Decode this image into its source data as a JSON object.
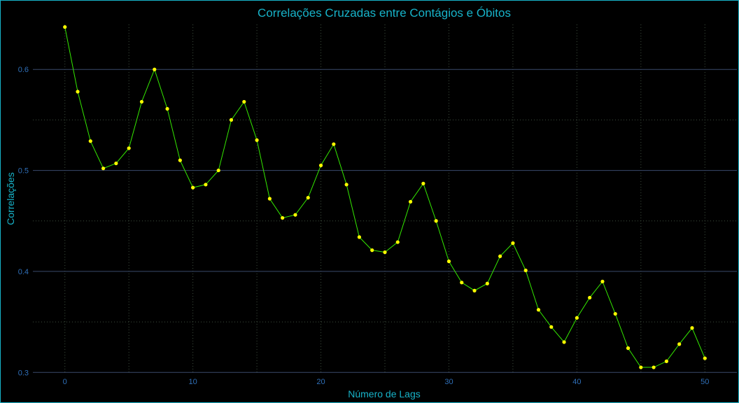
{
  "chart_data": {
    "type": "line",
    "title": "Correlações Cruzadas entre Contágios e Óbitos",
    "xlabel": "Número de Lags",
    "ylabel": "Correlações",
    "xlim": [
      -2.5,
      52.5
    ],
    "ylim": [
      0.2995,
      0.6445
    ],
    "x_ticks": [
      0,
      10,
      20,
      30,
      40,
      50
    ],
    "x_tick_labels": [
      "0",
      "10",
      "20",
      "30",
      "40",
      "50"
    ],
    "y_ticks": [
      0.3,
      0.4,
      0.5,
      0.6
    ],
    "y_tick_labels": [
      "0.3",
      "0.4",
      "0.5",
      "0.6"
    ],
    "grid": true,
    "series": [
      {
        "x": [
          0,
          1,
          2,
          3,
          4,
          5,
          6,
          7,
          8,
          9,
          10,
          11,
          12,
          13,
          14,
          15,
          16,
          17,
          18,
          19,
          20,
          21,
          22,
          23,
          24,
          25,
          26,
          27,
          28,
          29,
          30,
          31,
          32,
          33,
          34,
          35,
          36,
          37,
          38,
          39,
          40,
          41,
          42,
          43,
          44,
          45,
          46,
          47,
          48,
          49,
          50
        ],
        "values": [
          0.642,
          0.578,
          0.529,
          0.502,
          0.507,
          0.522,
          0.568,
          0.6,
          0.561,
          0.51,
          0.483,
          0.486,
          0.5,
          0.55,
          0.568,
          0.53,
          0.472,
          0.453,
          0.456,
          0.473,
          0.505,
          0.526,
          0.486,
          0.434,
          0.421,
          0.419,
          0.429,
          0.469,
          0.487,
          0.45,
          0.41,
          0.389,
          0.381,
          0.388,
          0.415,
          0.428,
          0.401,
          0.362,
          0.345,
          0.33,
          0.354,
          0.374,
          0.39,
          0.358,
          0.324,
          0.305,
          0.305,
          0.311,
          0.328,
          0.344,
          0.314
        ]
      }
    ],
    "colors": {
      "line": "#34e800",
      "marker": "#ffff00",
      "major_grid": "#3a4a6b",
      "minor_grid": "#3f4f3f",
      "text": "#17b3c9",
      "tick_text": "#2f6fb8",
      "background": "#000000",
      "border": "#17b3c9"
    }
  }
}
